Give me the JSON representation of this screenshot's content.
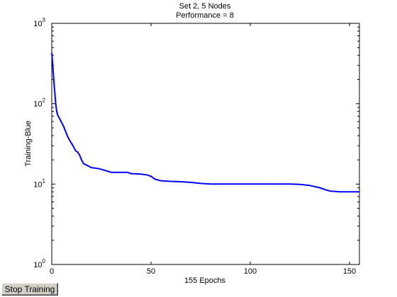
{
  "chart_data": {
    "type": "line",
    "title_lines": [
      "Set 2, 5 Nodes",
      "Performance = 8"
    ],
    "xlabel": "155 Epochs",
    "ylabel": "Training-Blue",
    "xlim": [
      0,
      155
    ],
    "ylim": [
      1,
      1000
    ],
    "yscale": "log",
    "grid": false,
    "x_ticks": [
      0,
      50,
      100,
      150
    ],
    "x_tick_labels": [
      "0",
      "50",
      "100",
      "150"
    ],
    "y_ticks": [
      1,
      10,
      100,
      1000
    ],
    "y_tick_labels": [
      {
        "base": "10",
        "exp": "0"
      },
      {
        "base": "10",
        "exp": "1"
      },
      {
        "base": "10",
        "exp": "2"
      },
      {
        "base": "10",
        "exp": "3"
      }
    ],
    "series": [
      {
        "color": "#0000ff",
        "x": [
          0,
          0.5,
          1,
          1.5,
          2,
          2.5,
          3,
          4,
          5,
          6,
          7,
          8,
          9,
          10,
          11,
          12,
          13,
          14,
          15,
          16,
          17,
          18,
          19,
          20,
          22,
          24,
          26,
          28,
          30,
          35,
          38,
          40,
          45,
          48,
          50,
          52,
          55,
          60,
          65,
          70,
          75,
          80,
          90,
          100,
          110,
          120,
          125,
          130,
          135,
          138,
          140,
          145,
          150,
          155
        ],
        "y": [
          430,
          300,
          200,
          140,
          100,
          80,
          72,
          65,
          58,
          52,
          45,
          39,
          35,
          32,
          29,
          26,
          25,
          23,
          20,
          18,
          17.5,
          17,
          16.5,
          16,
          15.8,
          15.5,
          15,
          14.5,
          14,
          14,
          14,
          13.5,
          13.3,
          13,
          12.5,
          11.5,
          11,
          10.8,
          10.7,
          10.5,
          10.2,
          10,
          10,
          10,
          10,
          10,
          9.9,
          9.6,
          9.0,
          8.5,
          8.2,
          8,
          8,
          8
        ]
      }
    ]
  },
  "controls": {
    "stop_button_label": "Stop Training"
  }
}
